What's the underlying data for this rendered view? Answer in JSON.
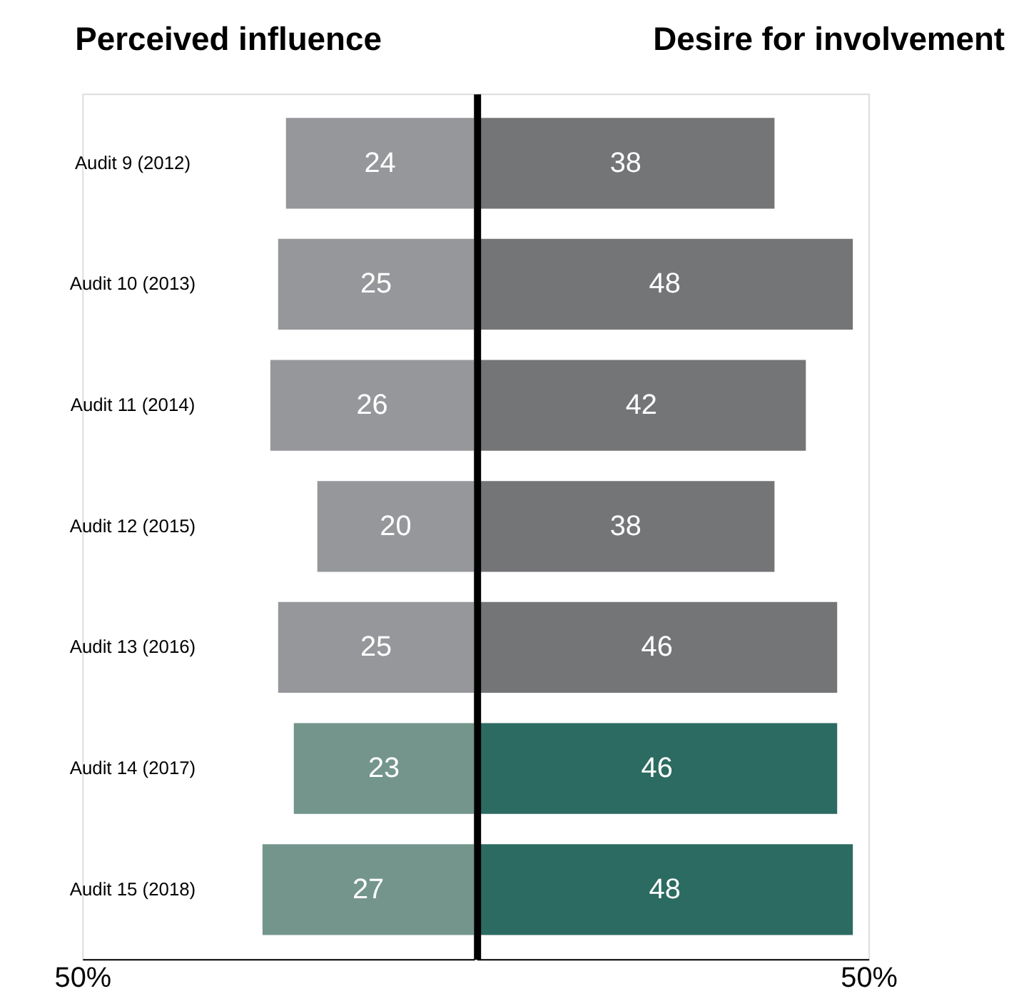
{
  "chart_data": [
    {
      "type": "bar",
      "orientation": "horizontal",
      "title": "Perceived influence",
      "categories": [
        "Audit 9 (2012)",
        "Audit 10 (2013)",
        "Audit 11 (2014)",
        "Audit 12 (2015)",
        "Audit 13 (2016)",
        "Audit 14 (2017)",
        "Audit 15 (2018)"
      ],
      "series": [
        {
          "colors": [
            "#96979a",
            "#96979a",
            "#96979a",
            "#96979a",
            "#96979a",
            "#73958c",
            "#73958c"
          ],
          "values": [
            24,
            25,
            26,
            20,
            25,
            23,
            27
          ]
        }
      ],
      "xlim": [
        50,
        0
      ],
      "xticks": [
        {
          "value": 50,
          "label": "50%"
        }
      ],
      "data_labels": true
    },
    {
      "type": "bar",
      "orientation": "horizontal",
      "title": "Desire for involvement",
      "categories": [
        null,
        null,
        null,
        null,
        null,
        null,
        null
      ],
      "series": [
        {
          "colors": [
            "#747577",
            "#747577",
            "#747577",
            "#747577",
            "#747577",
            "#2c6b61",
            "#2c6b61"
          ],
          "values": [
            38,
            48,
            42,
            38,
            46,
            46,
            48
          ]
        }
      ],
      "xlim": [
        0,
        50
      ],
      "xticks": [
        {
          "value": 50,
          "label": "50%"
        }
      ],
      "data_labels": true,
      "tick_labels": "x"
    }
  ]
}
